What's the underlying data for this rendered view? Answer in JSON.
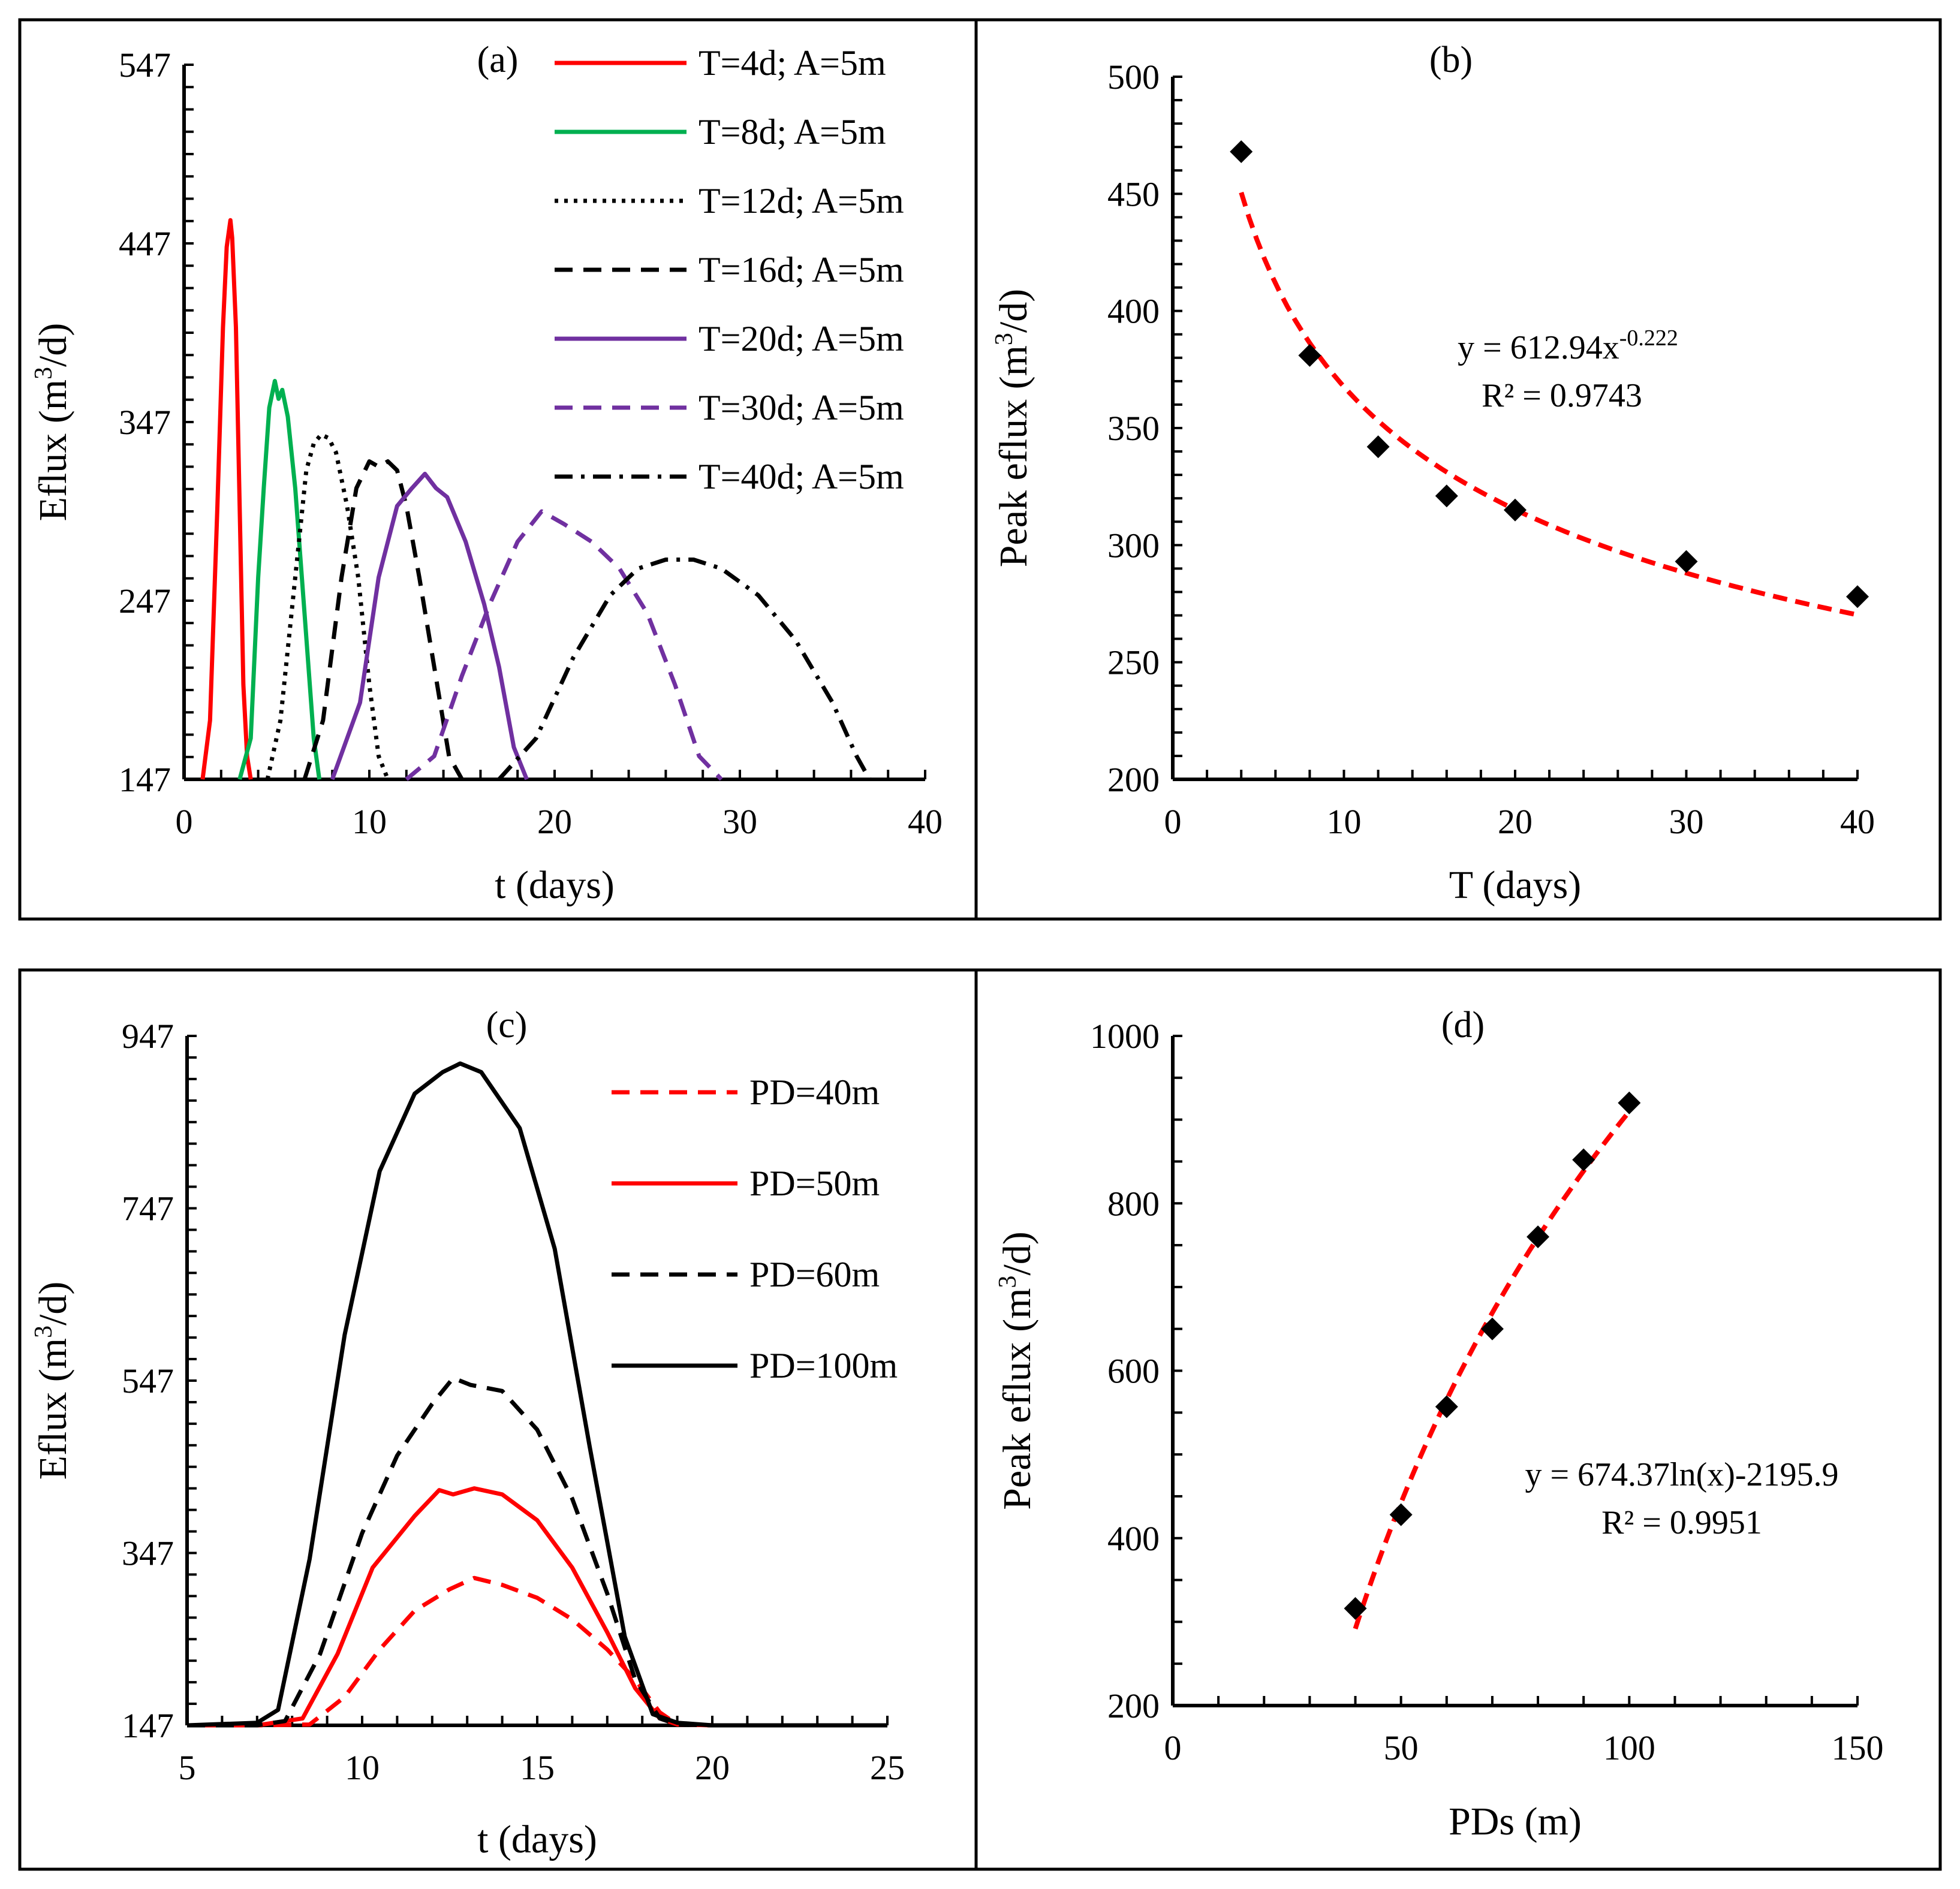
{
  "chart_data": [
    {
      "id": "a",
      "type": "line",
      "panel_label": "(a)",
      "xlabel": "t (days)",
      "ylabel": "Eflux (m³/d)",
      "ylabel_parts": [
        "Eflux (m",
        "3",
        "/d)"
      ],
      "xlim": [
        0,
        40
      ],
      "ylim": [
        147,
        547
      ],
      "xticks": [
        0,
        10,
        20,
        30,
        40
      ],
      "yticks": [
        147,
        247,
        347,
        447,
        547
      ],
      "legend_position": "top-right",
      "series": [
        {
          "name": "T=4d; A=5m",
          "color": "#ff0000",
          "style": "solid",
          "x": [
            1.0,
            1.4,
            1.8,
            2.1,
            2.3,
            2.5,
            2.6,
            2.8,
            3.0,
            3.2,
            3.4,
            3.6
          ],
          "y": [
            147,
            180,
            300,
            400,
            445,
            460,
            450,
            400,
            300,
            200,
            160,
            147
          ]
        },
        {
          "name": "T=8d; A=5m",
          "color": "#00b050",
          "style": "solid",
          "x": [
            3.0,
            3.6,
            4.0,
            4.3,
            4.6,
            4.9,
            5.1,
            5.3,
            5.6,
            6.0,
            6.5,
            7.0,
            7.3
          ],
          "y": [
            147,
            170,
            260,
            310,
            355,
            370,
            360,
            365,
            350,
            310,
            240,
            170,
            147
          ]
        },
        {
          "name": "T=12d; A=5m",
          "color": "#000000",
          "style": "dotted",
          "x": [
            4.5,
            5.2,
            6.0,
            6.6,
            7.0,
            7.4,
            7.8,
            8.2,
            8.8,
            9.4,
            10.0,
            10.5,
            11.0
          ],
          "y": [
            147,
            180,
            260,
            320,
            335,
            340,
            338,
            330,
            300,
            260,
            200,
            160,
            147
          ]
        },
        {
          "name": "T=16d; A=5m",
          "color": "#000000",
          "style": "dashed",
          "x": [
            6.5,
            7.5,
            8.5,
            9.3,
            10.0,
            10.5,
            11.0,
            11.5,
            12.0,
            12.7,
            13.5,
            14.3,
            15.0
          ],
          "y": [
            147,
            180,
            260,
            310,
            325,
            322,
            325,
            320,
            300,
            260,
            210,
            160,
            147
          ]
        },
        {
          "name": "T=20d; A=5m",
          "color": "#7030a0",
          "style": "solid",
          "x": [
            8.0,
            9.5,
            10.5,
            11.5,
            12.3,
            13.0,
            13.6,
            14.2,
            15.2,
            16.2,
            17.0,
            17.8,
            18.5
          ],
          "y": [
            147,
            190,
            260,
            300,
            310,
            318,
            310,
            305,
            280,
            245,
            210,
            165,
            147
          ]
        },
        {
          "name": "T=30d; A=5m",
          "color": "#7030a0",
          "style": "dashed",
          "x": [
            12.0,
            13.5,
            15.0,
            16.5,
            18.0,
            19.3,
            20.5,
            22.0,
            23.5,
            25.0,
            26.5,
            27.8,
            29.0
          ],
          "y": [
            147,
            160,
            205,
            245,
            280,
            297,
            290,
            280,
            265,
            240,
            200,
            160,
            147
          ]
        },
        {
          "name": "T=40d; A=5m",
          "color": "#000000",
          "style": "dashdot",
          "x": [
            17.0,
            19.0,
            21.0,
            23.0,
            24.5,
            26.0,
            27.5,
            29.0,
            31.0,
            33.0,
            35.0,
            36.3,
            37.0
          ],
          "y": [
            147,
            170,
            215,
            250,
            265,
            270,
            270,
            265,
            250,
            225,
            190,
            160,
            147
          ]
        }
      ]
    },
    {
      "id": "b",
      "type": "scatter",
      "panel_label": "(b)",
      "xlabel": "T (days)",
      "ylabel": "Peak eflux (m³/d)",
      "ylabel_parts": [
        "Peak eflux (m",
        "3",
        "/d)"
      ],
      "xlim": [
        0,
        40
      ],
      "ylim": [
        200,
        500
      ],
      "xticks": [
        0,
        10,
        20,
        30,
        40
      ],
      "yticks": [
        200,
        250,
        300,
        350,
        400,
        450,
        500
      ],
      "points": {
        "x": [
          4,
          8,
          12,
          16,
          20,
          30,
          40
        ],
        "y": [
          468,
          381,
          342,
          321,
          315,
          293,
          278
        ]
      },
      "fit": {
        "type": "power",
        "a": 612.94,
        "b": -0.222,
        "x_range": [
          4,
          40
        ],
        "color": "#ff0000"
      },
      "equation": {
        "prefix": "y = 612.94x",
        "exponent": "-0.222",
        "r2": "R² = 0.9743"
      }
    },
    {
      "id": "c",
      "type": "line",
      "panel_label": "(c)",
      "xlabel": "t (days)",
      "ylabel": "Eflux (m³/d)",
      "ylabel_parts": [
        "Eflux (m",
        "3",
        "/d)"
      ],
      "xlim": [
        5,
        25
      ],
      "ylim": [
        147,
        947
      ],
      "xticks": [
        5,
        10,
        15,
        20,
        25
      ],
      "yticks": [
        147,
        347,
        547,
        747,
        947
      ],
      "legend_position": "top-right",
      "series": [
        {
          "name": "PD=40m",
          "color": "#ff0000",
          "style": "dashed",
          "x": [
            5,
            7,
            8.5,
            9.5,
            10.5,
            11.5,
            12.5,
            13.2,
            14,
            15,
            16,
            17,
            17.8,
            18.5,
            19,
            20,
            25
          ],
          "y": [
            147,
            147,
            148,
            180,
            235,
            280,
            305,
            318,
            310,
            295,
            270,
            235,
            200,
            162,
            148,
            147,
            147
          ]
        },
        {
          "name": "PD=50m",
          "color": "#ff0000",
          "style": "solid",
          "x": [
            5,
            7,
            8.3,
            9.3,
            10.3,
            11.5,
            12.2,
            12.6,
            13.2,
            14,
            15,
            16,
            17,
            17.8,
            18.5,
            19,
            20,
            25
          ],
          "y": [
            147,
            147,
            155,
            230,
            330,
            390,
            420,
            415,
            422,
            415,
            385,
            330,
            255,
            190,
            155,
            148,
            147,
            147
          ]
        },
        {
          "name": "PD=60m",
          "color": "#000000",
          "style": "dashed",
          "x": [
            5,
            7,
            7.8,
            8.8,
            10,
            11,
            12,
            12.6,
            13.1,
            14,
            15,
            16,
            17,
            17.8,
            18.5,
            19,
            20,
            25
          ],
          "y": [
            147,
            147,
            152,
            230,
            370,
            460,
            520,
            550,
            542,
            535,
            490,
            410,
            300,
            200,
            155,
            148,
            147,
            147
          ]
        },
        {
          "name": "PD=100m",
          "color": "#000000",
          "style": "solid",
          "x": [
            5,
            7,
            7.6,
            8.5,
            9.5,
            10.5,
            11.5,
            12.3,
            12.8,
            13.4,
            14.5,
            15.5,
            16.5,
            17.5,
            18.3,
            19,
            20,
            25
          ],
          "y": [
            147,
            150,
            165,
            340,
            600,
            790,
            880,
            905,
            915,
            905,
            840,
            700,
            470,
            250,
            160,
            150,
            147,
            147
          ]
        }
      ]
    },
    {
      "id": "d",
      "type": "scatter",
      "panel_label": "(d)",
      "xlabel": "PDs (m)",
      "ylabel": "Peak eflux (m³/d)",
      "ylabel_parts": [
        "Peak eflux (m",
        "3",
        "/d)"
      ],
      "xlim": [
        0,
        150
      ],
      "ylim": [
        200,
        1000
      ],
      "xticks": [
        0,
        50,
        100,
        150
      ],
      "yticks": [
        200,
        400,
        600,
        800,
        1000
      ],
      "points": {
        "x": [
          40,
          50,
          60,
          70,
          80,
          90,
          100
        ],
        "y": [
          316,
          428,
          557,
          650,
          760,
          852,
          920
        ]
      },
      "fit": {
        "type": "log",
        "a": 674.37,
        "b": -2195.9,
        "x_range": [
          40,
          100
        ],
        "color": "#ff0000"
      },
      "equation": {
        "line1": "y = 674.37ln(x)-2195.9",
        "r2": "R² = 0.9951"
      }
    }
  ]
}
